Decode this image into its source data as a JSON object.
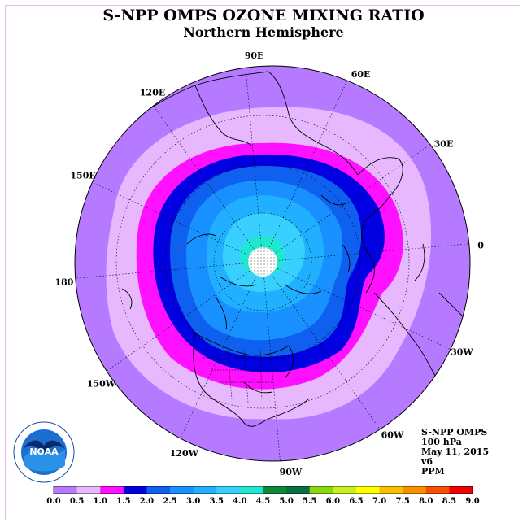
{
  "title": "S-NPP OMPS OZONE MIXING RATIO",
  "subtitle": "Northern Hemisphere",
  "longitude_labels": [
    {
      "text": "90E",
      "lon": 90
    },
    {
      "text": "60E",
      "lon": 60
    },
    {
      "text": "30E",
      "lon": 30
    },
    {
      "text": "0",
      "lon": 0
    },
    {
      "text": "30W",
      "lon": -30
    },
    {
      "text": "60W",
      "lon": -60
    },
    {
      "text": "90W",
      "lon": -90
    },
    {
      "text": "120W",
      "lon": -120
    },
    {
      "text": "150W",
      "lon": -150
    },
    {
      "text": "180",
      "lon": 180
    },
    {
      "text": "150E",
      "lon": 150
    },
    {
      "text": "120E",
      "lon": 120
    }
  ],
  "info": {
    "instrument": "S-NPP OMPS",
    "level": "100 hPa",
    "date": "May 11, 2015",
    "version": "v6",
    "units": "PPM"
  },
  "logo_text": "NOAA",
  "colorbar": {
    "ticks": [
      "0.0",
      "0.5",
      "1.0",
      "1.5",
      "2.0",
      "2.5",
      "3.0",
      "3.5",
      "4.0",
      "4.5",
      "5.0",
      "5.5",
      "6.0",
      "6.5",
      "7.0",
      "7.5",
      "8.0",
      "8.5",
      "9.0"
    ],
    "colors": [
      "#b57aff",
      "#e8b8ff",
      "#ff10ff",
      "#0000e0",
      "#1060f0",
      "#1890ff",
      "#20b0ff",
      "#38d0ff",
      "#20e8d0",
      "#108838",
      "#087040",
      "#88d810",
      "#c8f020",
      "#ffff00",
      "#f8c000",
      "#f89000",
      "#f85000",
      "#f00000",
      "#885030"
    ]
  },
  "colors": {
    "ocean_outer": "#b57aff",
    "band_light": "#e8b8ff",
    "band_magenta": "#ff10ff",
    "band_blue": "#0000e0",
    "band_mid": "#1060f0",
    "band_sky": "#1890ff",
    "band_light_sky": "#20b0ff",
    "band_cyan": "#38d0ff",
    "band_teal": "#20e8d0"
  }
}
